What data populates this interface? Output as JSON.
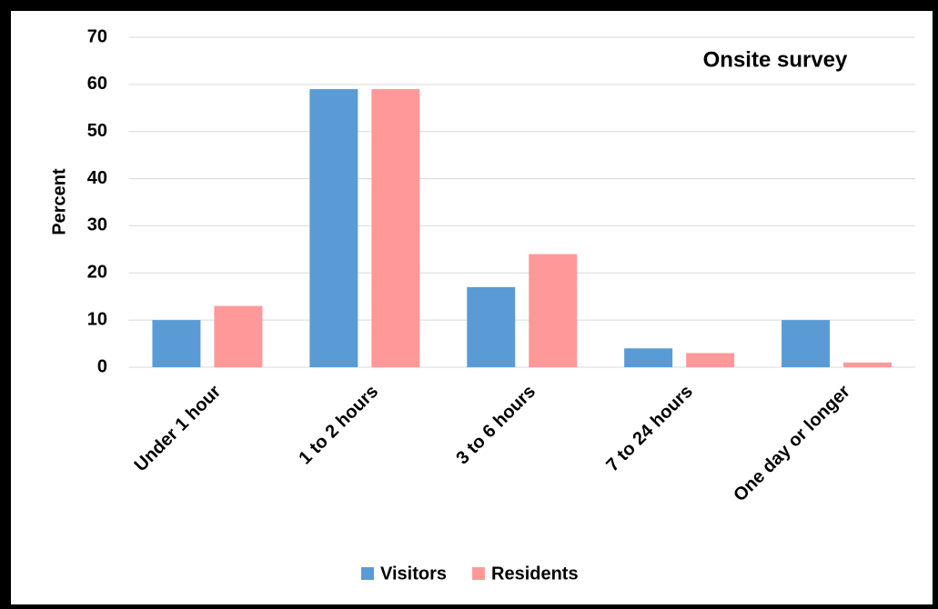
{
  "chart_data": {
    "type": "bar",
    "title": "Onsite survey",
    "y_label": "Percent",
    "categories": [
      "Under 1 hour",
      "1 to 2 hours",
      "3 to 6 hours",
      "7 to 24 hours",
      "One day or longer"
    ],
    "series": [
      {
        "name": "Visitors",
        "color": "#5b9bd5",
        "values": [
          10,
          59,
          17,
          4,
          10
        ]
      },
      {
        "name": "Residents",
        "color": "#ff9999",
        "values": [
          13,
          59,
          24,
          3,
          1
        ]
      }
    ],
    "ylim": [
      0,
      70
    ],
    "yticks": [
      0,
      10,
      20,
      30,
      40,
      50,
      60,
      70
    ],
    "grid": true,
    "legend": "bottom"
  }
}
